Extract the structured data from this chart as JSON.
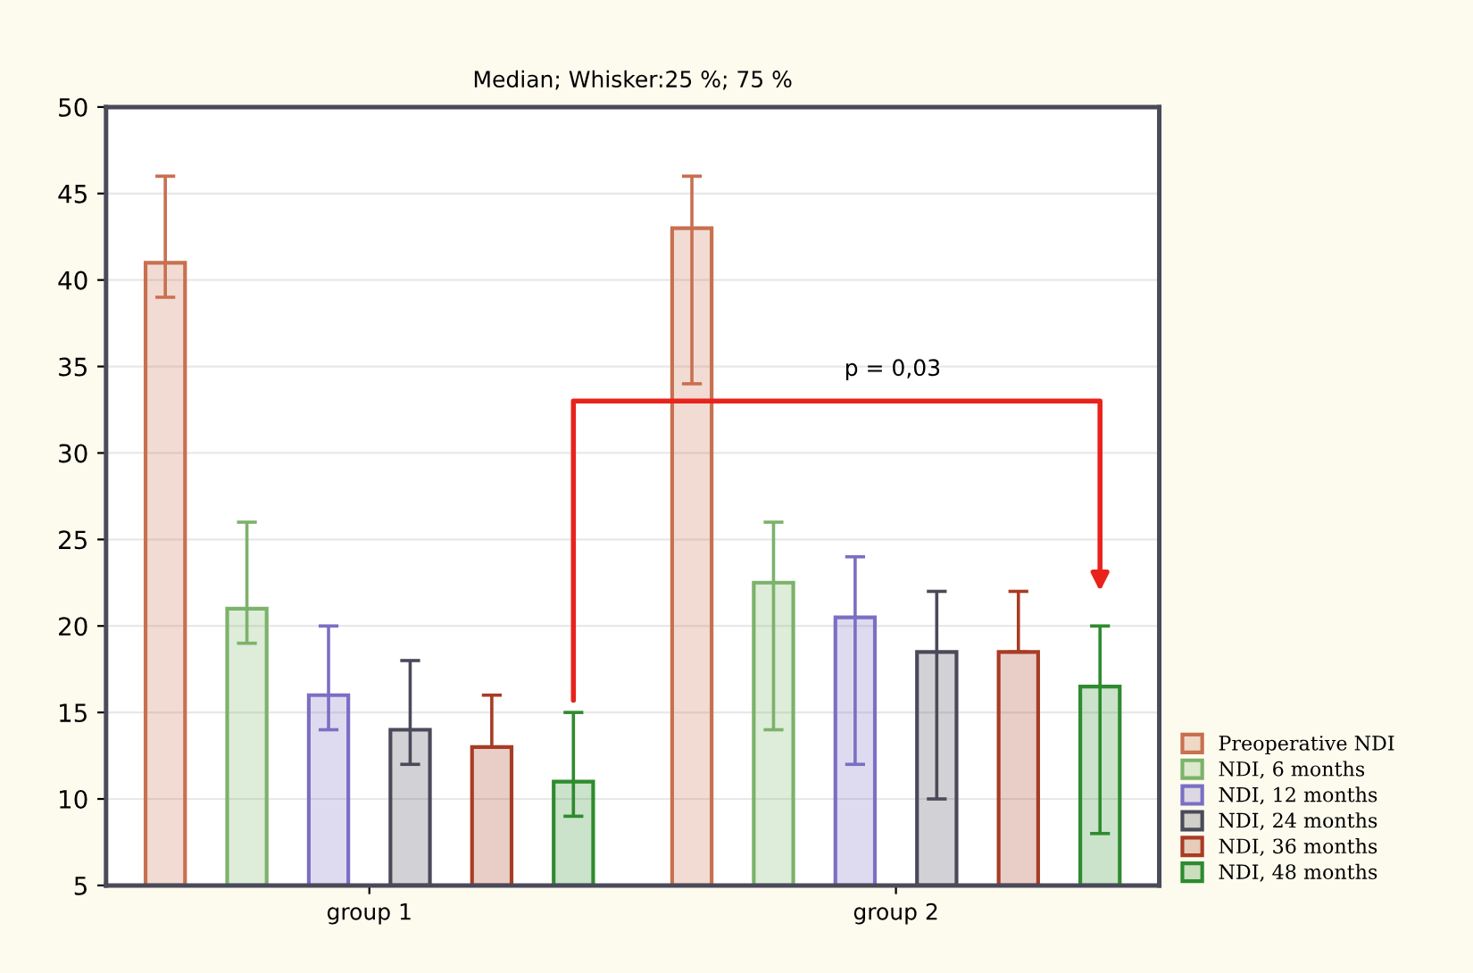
{
  "chart_data": {
    "type": "bar",
    "title": "Median; Whisker:25 %; 75 %",
    "categories": [
      "group 1",
      "group 2"
    ],
    "series": [
      {
        "name": "Preoperative NDI",
        "color": "#c8704f",
        "values": [
          41,
          43
        ],
        "errors": [
          [
            39,
            46
          ],
          [
            34,
            46
          ]
        ]
      },
      {
        "name": "NDI, 6 months",
        "color": "#7cb26a",
        "values": [
          21,
          22.5
        ],
        "errors": [
          [
            19,
            26
          ],
          [
            14,
            26
          ]
        ]
      },
      {
        "name": "NDI, 12 months",
        "color": "#7b6fc4",
        "values": [
          16,
          20.5
        ],
        "errors": [
          [
            14,
            20
          ],
          [
            12,
            24
          ]
        ]
      },
      {
        "name": "NDI, 24 months",
        "color": "#4a4a5a",
        "values": [
          14,
          18.5
        ],
        "errors": [
          [
            12,
            18
          ],
          [
            10,
            22
          ]
        ]
      },
      {
        "name": "NDI, 36 months",
        "color": "#a83c24",
        "values": [
          13,
          18.5
        ],
        "errors": [
          [
            13,
            16
          ],
          [
            18.5,
            22
          ]
        ]
      },
      {
        "name": "NDI, 48 months",
        "color": "#2e8b2e",
        "values": [
          11,
          16.5
        ],
        "errors": [
          [
            9,
            15
          ],
          [
            8,
            20
          ]
        ]
      }
    ],
    "ylim": [
      5,
      50
    ],
    "yticks": [
      5,
      10,
      15,
      20,
      25,
      30,
      35,
      40,
      45,
      50
    ],
    "grid": "y",
    "legend": "bottom right",
    "annotations": [
      "p = 0,03"
    ]
  }
}
